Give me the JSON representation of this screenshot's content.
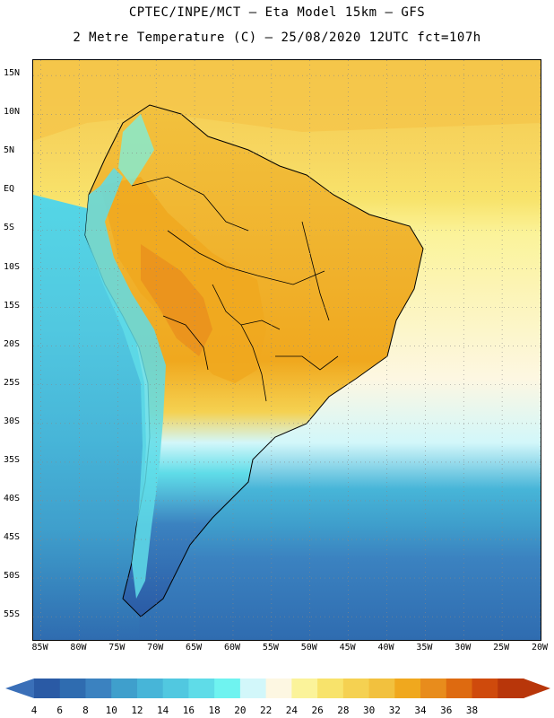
{
  "header": {
    "line1": "CPTEC/INPE/MCT –  Eta Model 15km – GFS",
    "line2": "2 Metre Temperature (C) – 25/08/2020 12UTC fct=107h"
  },
  "map": {
    "lat_labels": [
      "15N",
      "10N",
      "5N",
      "EQ",
      "5S",
      "10S",
      "15S",
      "20S",
      "25S",
      "30S",
      "35S",
      "40S",
      "45S",
      "50S",
      "55S"
    ],
    "lon_labels": [
      "85W",
      "80W",
      "75W",
      "70W",
      "65W",
      "60W",
      "55W",
      "50W",
      "45W",
      "40W",
      "35W",
      "30W",
      "25W",
      "20W"
    ],
    "lat_range": [
      17,
      -58
    ],
    "lon_range": [
      -86,
      -20
    ],
    "gridlines": true,
    "ocean_regions": [
      {
        "name": "north-atlantic-tropical",
        "color": "#f5c64a"
      },
      {
        "name": "pacific-equatorial",
        "color": "#f7e07a"
      },
      {
        "name": "south-pacific-warm",
        "color": "#55d6e6"
      },
      {
        "name": "south-atlantic-subtropical",
        "color": "#fdf7e2"
      },
      {
        "name": "south-cold",
        "color": "#2f6cb0"
      }
    ]
  },
  "colorbar": {
    "levels": [
      "4",
      "6",
      "8",
      "10",
      "12",
      "14",
      "16",
      "18",
      "20",
      "22",
      "24",
      "26",
      "28",
      "30",
      "32",
      "34",
      "36",
      "38"
    ],
    "colors": [
      "#2a5aa5",
      "#2f6cb0",
      "#3b82c0",
      "#3f9fcc",
      "#47b5d8",
      "#51c8e0",
      "#5fdce8",
      "#6ff3f0",
      "#d2f7fa",
      "#fdf7e2",
      "#fbf39a",
      "#f8e36b",
      "#f5d151",
      "#f2c13e",
      "#f0a81e",
      "#e88c1c",
      "#de6a10",
      "#cf4a0c",
      "#b8360a"
    ],
    "under_color": "#3a6fb8",
    "over_color": "#b8360a"
  }
}
